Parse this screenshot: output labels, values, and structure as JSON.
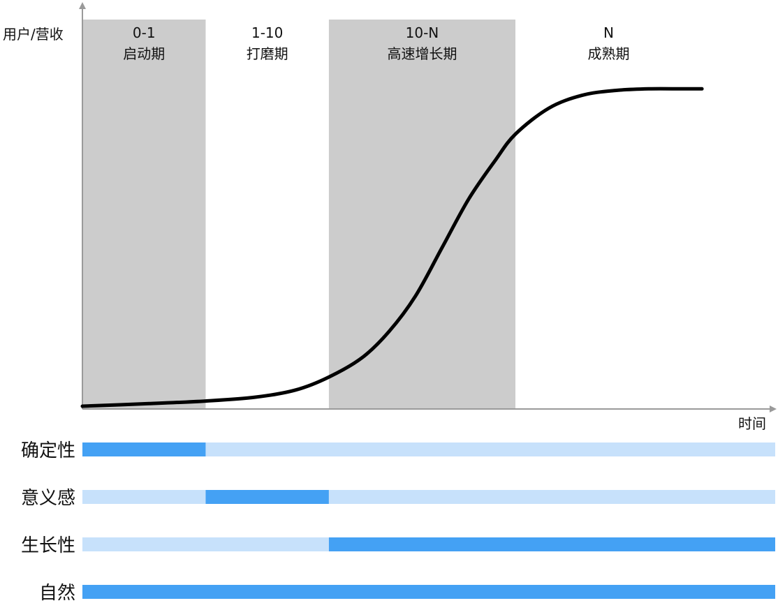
{
  "chart_data": {
    "type": "line",
    "ylabel": "用户/营收",
    "xlabel": "时间",
    "grid": false,
    "xlim": [
      0,
      100
    ],
    "ylim": [
      0,
      100
    ],
    "phases": [
      {
        "range_label": "0-1",
        "name": "启动期",
        "start": 0,
        "end": 18.5,
        "shaded": true
      },
      {
        "range_label": "1-10",
        "name": "打磨期",
        "start": 18.5,
        "end": 37,
        "shaded": false
      },
      {
        "range_label": "10-N",
        "name": "高速增长期",
        "start": 37,
        "end": 65,
        "shaded": true
      },
      {
        "range_label": "N",
        "name": "成熟期",
        "start": 65,
        "end": 93,
        "shaded": false
      }
    ],
    "series": [
      {
        "x": [
          0,
          10,
          18.5,
          26,
          32,
          37,
          42,
          46,
          50,
          54,
          58,
          62,
          65,
          70,
          75,
          80,
          85,
          90,
          93
        ],
        "y": [
          0,
          0.8,
          1.6,
          2.8,
          5,
          9,
          15,
          23,
          34,
          49,
          64,
          76,
          84,
          92,
          96,
          97.5,
          98,
          98,
          98
        ]
      }
    ],
    "bars_x_max": 104,
    "attribute_rows": [
      {
        "label": "确定性",
        "segments": [
          {
            "start": 0,
            "end": 18.5,
            "level": "high"
          },
          {
            "start": 18.5,
            "end": 104,
            "level": "low"
          }
        ]
      },
      {
        "label": "意义感",
        "segments": [
          {
            "start": 0,
            "end": 18.5,
            "level": "low"
          },
          {
            "start": 18.5,
            "end": 37,
            "level": "high"
          },
          {
            "start": 37,
            "end": 104,
            "level": "low"
          }
        ]
      },
      {
        "label": "生长性",
        "segments": [
          {
            "start": 0,
            "end": 37,
            "level": "low"
          },
          {
            "start": 37,
            "end": 104,
            "level": "high"
          }
        ]
      },
      {
        "label": "自然",
        "segments": [
          {
            "start": 0,
            "end": 104,
            "level": "high"
          }
        ]
      }
    ],
    "colors": {
      "shade": "#cccccc",
      "curve": "#000000",
      "axis": "#9a9a9a",
      "bar_high": "#44a1f4",
      "bar_low": "#c7e1fb"
    }
  }
}
